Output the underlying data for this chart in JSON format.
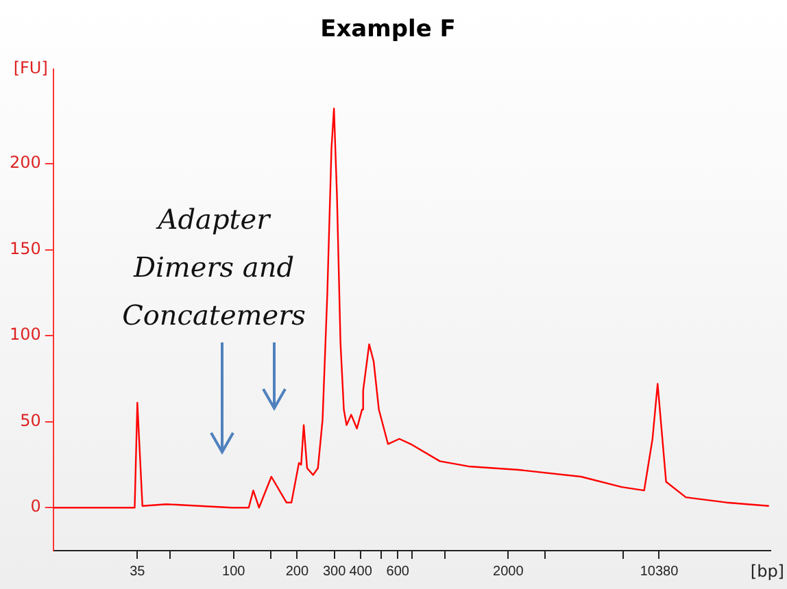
{
  "chart_data": {
    "type": "line",
    "title": "Example F",
    "xlabel": "[bp]",
    "ylabel": "[FU]",
    "annotations": [
      "Adapter Dimers and Concatemers"
    ],
    "x": [
      14,
      32,
      34,
      35,
      37,
      48,
      98,
      118,
      124,
      132,
      151,
      178,
      188,
      204,
      209,
      215,
      223,
      238,
      251,
      264,
      278,
      291,
      299,
      309,
      321,
      333,
      343,
      361,
      384,
      406,
      411,
      439,
      461,
      488,
      539,
      610,
      690,
      949,
      1297,
      2237,
      4431,
      6900,
      8816,
      9657,
      10212,
      10650,
      11200,
      13900,
      21600,
      34400
    ],
    "series": [
      {
        "color": "#ff0000",
        "values": [
          0,
          0,
          0,
          61,
          1,
          2,
          0,
          0,
          10,
          0,
          18,
          3,
          3,
          26,
          25,
          48,
          23,
          19,
          23,
          51,
          124,
          209,
          232,
          181,
          96,
          57,
          48,
          54,
          46,
          57,
          68,
          95,
          85,
          57,
          37,
          40,
          37,
          27,
          24,
          22,
          18,
          12,
          10,
          40,
          72,
          46,
          15,
          6,
          3,
          1
        ]
      }
    ],
    "log": "x",
    "xlim": [
      14,
      35000
    ],
    "xticks": [
      35,
      {
        "value": 50,
        "label": null
      },
      100,
      {
        "value": 150,
        "label": null
      },
      200,
      300,
      400,
      {
        "value": 500,
        "label": null
      },
      600,
      {
        "value": 700,
        "label": null
      },
      {
        "value": 1000,
        "label": null
      },
      2000,
      {
        "value": 3000,
        "label": null
      },
      {
        "value": 7000,
        "label": null
      },
      10380
    ],
    "ylim": [
      -25,
      255
    ],
    "yticks": [
      0,
      50,
      100,
      150,
      200
    ],
    "grid": false,
    "legend": false,
    "marker": "none",
    "line_style": "solid"
  }
}
